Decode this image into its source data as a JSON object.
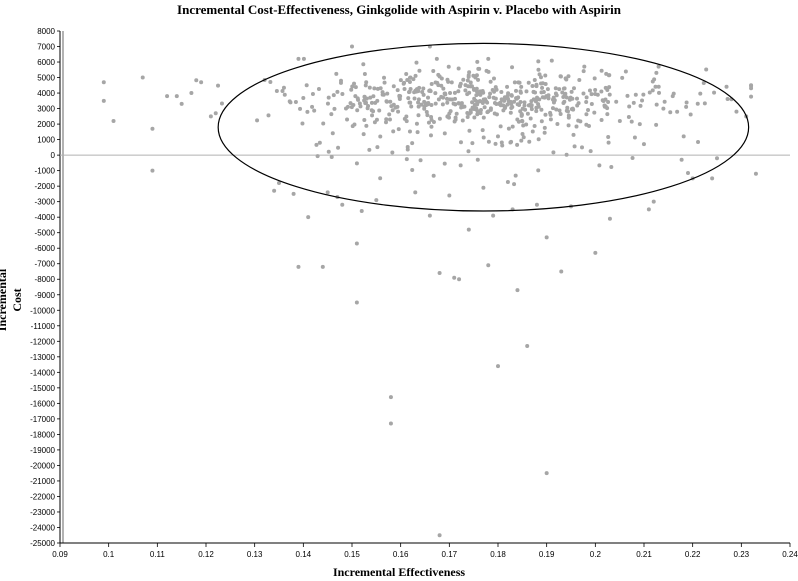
{
  "chart_data": {
    "type": "scatter",
    "title": "Incremental Cost-Effectiveness, Ginkgolide with Aspirin v. Placebo with Aspirin",
    "xlabel": "Incremental Effectiveness",
    "ylabel": "Incremental Cost",
    "xlim": [
      0.09,
      0.24
    ],
    "ylim": [
      -25000,
      8000
    ],
    "x_ticks": [
      "0.09",
      "0.1",
      "0.11",
      "0.12",
      "0.13",
      "0.14",
      "0.15",
      "0.16",
      "0.17",
      "0.18",
      "0.19",
      "0.2",
      "0.21",
      "0.22",
      "0.23",
      "0.24"
    ],
    "y_ticks": [
      "8000",
      "7000",
      "6000",
      "5000",
      "4000",
      "3000",
      "2000",
      "1000",
      "0",
      "-1000",
      "-2000",
      "-3000",
      "-4000",
      "-5000",
      "-6000",
      "-7000",
      "-8000",
      "-9000",
      "-10000",
      "-11000",
      "-12000",
      "-13000",
      "-14000",
      "-15000",
      "-16000",
      "-17000",
      "-18000",
      "-19000",
      "-20000",
      "-21000",
      "-22000",
      "-23000",
      "-24000",
      "-25000"
    ],
    "grid": false,
    "reference_line_y": 0,
    "confidence_ellipse": {
      "center": [
        0.177,
        1800
      ],
      "rx": 0.0545,
      "ry": 5400
    },
    "point_color": "#a6a6a6",
    "series": [
      {
        "points": [
          [
            0.099,
            4700
          ],
          [
            0.099,
            3500
          ],
          [
            0.101,
            2200
          ],
          [
            0.107,
            5000
          ],
          [
            0.109,
            1700
          ],
          [
            0.109,
            -1000
          ],
          [
            0.112,
            3800
          ],
          [
            0.114,
            3800
          ],
          [
            0.115,
            3300
          ],
          [
            0.117,
            4000
          ],
          [
            0.119,
            4700
          ],
          [
            0.121,
            2500
          ],
          [
            0.122,
            2700
          ],
          [
            0.134,
            -2300
          ],
          [
            0.135,
            -1800
          ],
          [
            0.138,
            -2500
          ],
          [
            0.139,
            -7200
          ],
          [
            0.141,
            -4000
          ],
          [
            0.144,
            -7200
          ],
          [
            0.145,
            -2400
          ],
          [
            0.147,
            -2700
          ],
          [
            0.148,
            -3200
          ],
          [
            0.151,
            -5700
          ],
          [
            0.151,
            -9500
          ],
          [
            0.152,
            -3600
          ],
          [
            0.155,
            -2900
          ],
          [
            0.158,
            -15600
          ],
          [
            0.158,
            -17300
          ],
          [
            0.163,
            -2400
          ],
          [
            0.166,
            -3900
          ],
          [
            0.168,
            -7600
          ],
          [
            0.168,
            -24500
          ],
          [
            0.17,
            -2600
          ],
          [
            0.171,
            -7900
          ],
          [
            0.172,
            -8000
          ],
          [
            0.174,
            -4800
          ],
          [
            0.177,
            -2100
          ],
          [
            0.178,
            -7100
          ],
          [
            0.179,
            -3900
          ],
          [
            0.18,
            -13600
          ],
          [
            0.183,
            -3500
          ],
          [
            0.184,
            -8700
          ],
          [
            0.186,
            -12300
          ],
          [
            0.188,
            -3200
          ],
          [
            0.19,
            -5300
          ],
          [
            0.19,
            -20500
          ],
          [
            0.193,
            -7500
          ],
          [
            0.195,
            -3300
          ],
          [
            0.2,
            -6300
          ],
          [
            0.203,
            -4100
          ],
          [
            0.211,
            -3500
          ],
          [
            0.212,
            -3000
          ],
          [
            0.22,
            -1500
          ],
          [
            0.224,
            -1500
          ],
          [
            0.225,
            -200
          ],
          [
            0.229,
            2800
          ],
          [
            0.231,
            2500
          ],
          [
            0.232,
            4500
          ],
          [
            0.233,
            -1200
          ],
          [
            0.15,
            7000
          ],
          [
            0.166,
            7000
          ],
          [
            0.139,
            6200
          ],
          [
            0.178,
            6200
          ],
          [
            0.213,
            5700
          ]
        ]
      }
    ]
  }
}
